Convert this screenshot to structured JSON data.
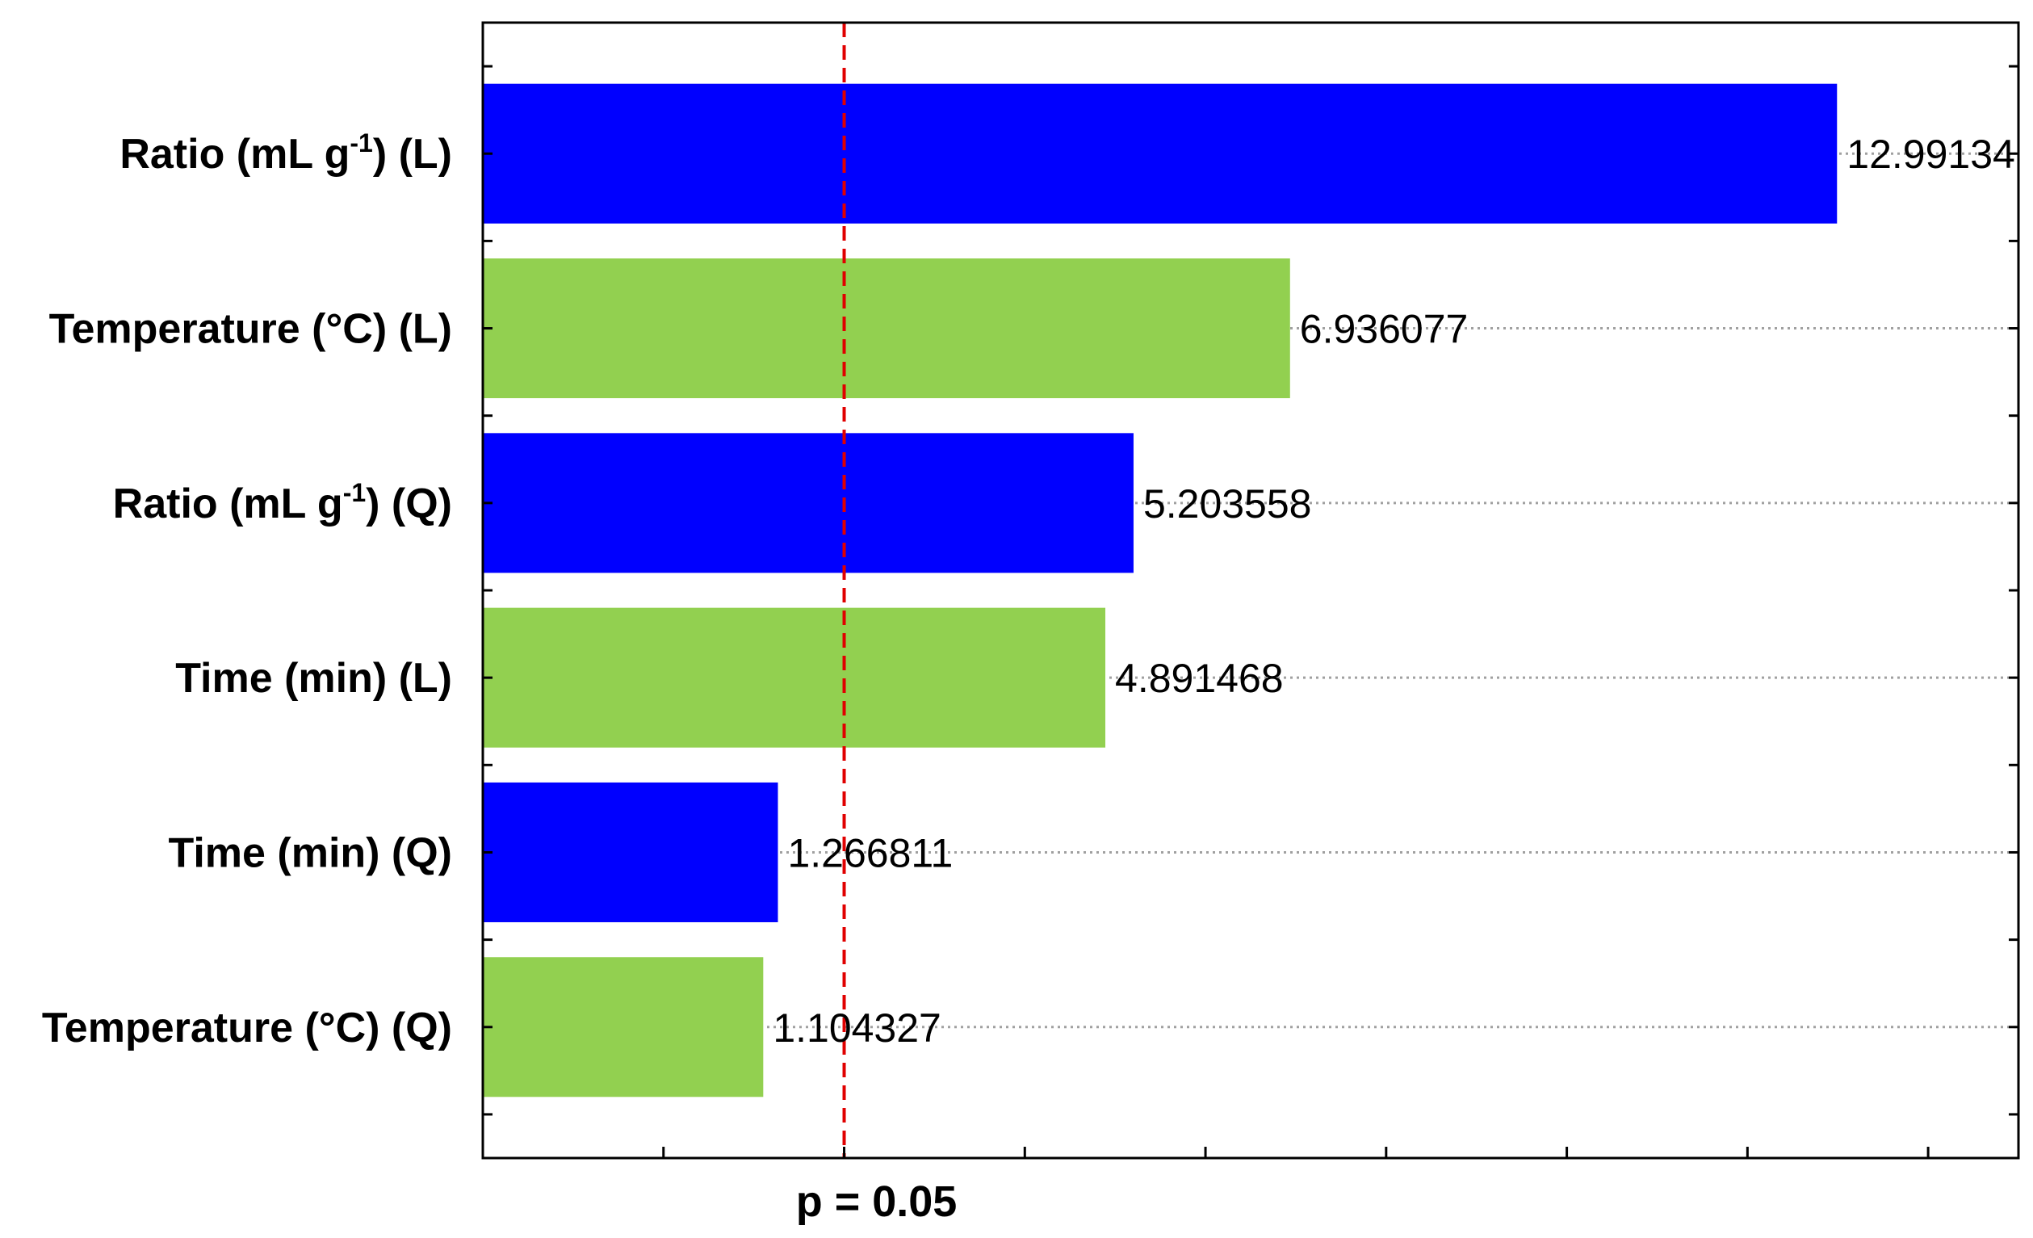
{
  "chart_data": {
    "type": "bar",
    "orientation": "horizontal",
    "categories": [
      {
        "main": "Ratio (mL g",
        "sup": "-1",
        "post": ")  (L)"
      },
      {
        "main": "Temperature (°C)  (L)",
        "sup": "",
        "post": ""
      },
      {
        "main": "Ratio (mL g",
        "sup": "-1",
        "post": ")  (Q)"
      },
      {
        "main": "Time (min)  (L)",
        "sup": "",
        "post": ""
      },
      {
        "main": "Time (min)  (Q)",
        "sup": "",
        "post": ""
      },
      {
        "main": "Temperature (°C)  (Q)",
        "sup": "",
        "post": ""
      }
    ],
    "values": [
      12.99134,
      6.936077,
      5.203558,
      4.891468,
      1.266811,
      1.104327
    ],
    "value_labels": [
      "12.99134",
      "6.936077",
      "5.203558",
      "4.891468",
      "1.266811",
      "1.104327"
    ],
    "bar_colors": [
      "#0000ff",
      "#92d050",
      "#0000ff",
      "#92d050",
      "#0000ff",
      "#92d050"
    ],
    "xlim": [
      -2.0,
      15.0
    ],
    "reference_line": {
      "value": 2.0,
      "label": "p = 0.05",
      "color": "#e00000",
      "style": "dashed"
    },
    "title": "",
    "xlabel": "",
    "ylabel": "",
    "grid": "dotted horizontal lines at category positions",
    "legend": "none"
  },
  "colors": {
    "axis": "#000000",
    "grid": "#a0a0a0"
  }
}
